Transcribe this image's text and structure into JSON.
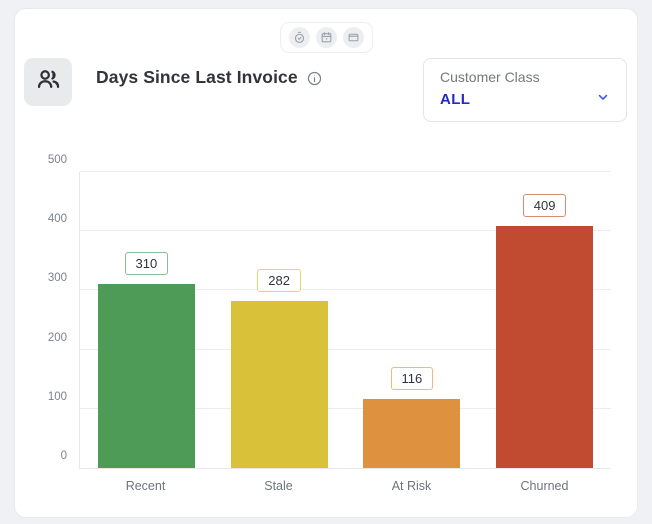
{
  "toolbar": {
    "icons": [
      {
        "name": "timer-check-icon"
      },
      {
        "name": "calendar-icon"
      },
      {
        "name": "window-icon"
      }
    ]
  },
  "header": {
    "title": "Days Since Last Invoice",
    "info_icon": "info-circle",
    "filter": {
      "label": "Customer Class",
      "value": "ALL"
    }
  },
  "chart_data": {
    "type": "bar",
    "title": "Days Since Last Invoice",
    "categories": [
      "Recent",
      "Stale",
      "At Risk",
      "Churned"
    ],
    "values": [
      310,
      282,
      116,
      409
    ],
    "colors": [
      "#4e9a57",
      "#d9c23a",
      "#de913e",
      "#c14b30"
    ],
    "label_border_colors": [
      "#8cbd92",
      "#e5d47e",
      "#ecba82",
      "#d98b74"
    ],
    "xlabel": "",
    "ylabel": "",
    "ylim": [
      0,
      500
    ],
    "yticks": [
      0,
      100,
      200,
      300,
      400,
      500
    ],
    "grid": true,
    "legend": false,
    "value_labels": true
  }
}
